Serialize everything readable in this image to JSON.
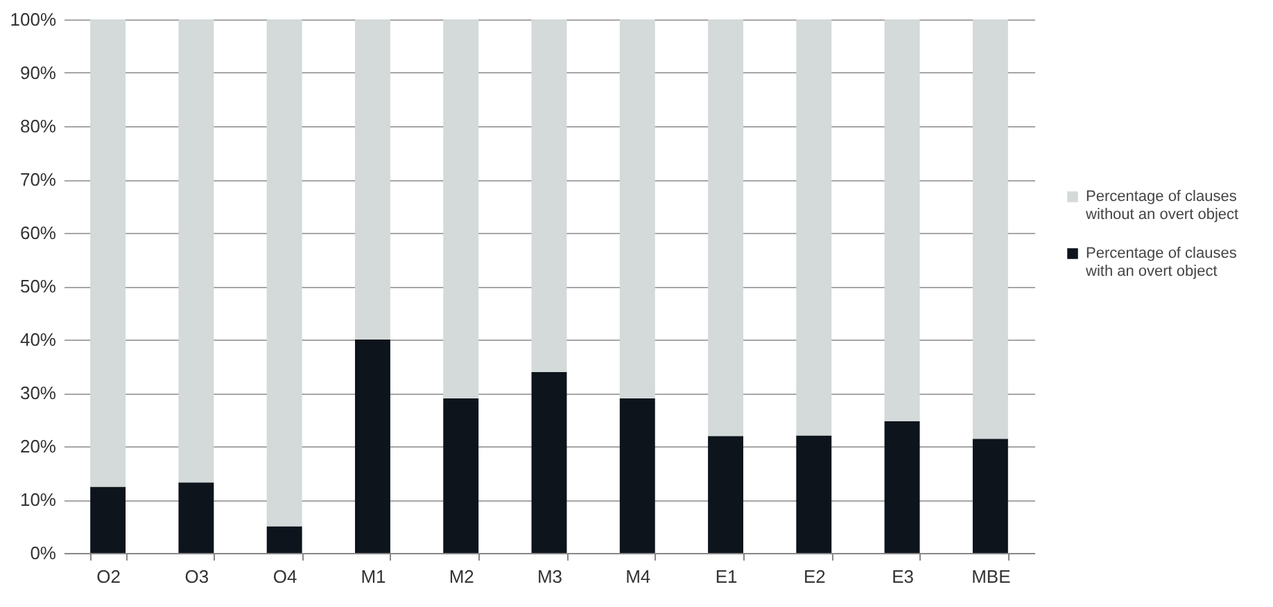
{
  "chart_data": {
    "type": "bar",
    "stacked": true,
    "categories": [
      "O2",
      "O3",
      "O4",
      "M1",
      "M2",
      "M3",
      "M4",
      "E1",
      "E2",
      "E3",
      "MBE"
    ],
    "series": [
      {
        "name": "Percentage of clauses with an overt object",
        "color": "#0d141b",
        "values": [
          12.4,
          13.2,
          5.0,
          40.0,
          29.0,
          33.9,
          29.0,
          21.9,
          22.0,
          24.7,
          21.4
        ]
      },
      {
        "name": "Percentage of clauses without an overt object",
        "color": "#d4d9d9",
        "values": [
          87.6,
          86.8,
          95.0,
          60.0,
          71.0,
          66.1,
          71.0,
          78.1,
          78.0,
          75.3,
          78.6
        ]
      }
    ],
    "ylim": [
      0,
      100
    ],
    "yticks": [
      {
        "value": 0,
        "label": "0%"
      },
      {
        "value": 10,
        "label": "10%"
      },
      {
        "value": 20,
        "label": "20%"
      },
      {
        "value": 30,
        "label": "30%"
      },
      {
        "value": 40,
        "label": "40%"
      },
      {
        "value": 50,
        "label": "50%"
      },
      {
        "value": 60,
        "label": "60%"
      },
      {
        "value": 70,
        "label": "70%"
      },
      {
        "value": 80,
        "label": "80%"
      },
      {
        "value": 90,
        "label": "90%"
      },
      {
        "value": 100,
        "label": "100%"
      }
    ],
    "grid": "y",
    "legend": "right"
  }
}
